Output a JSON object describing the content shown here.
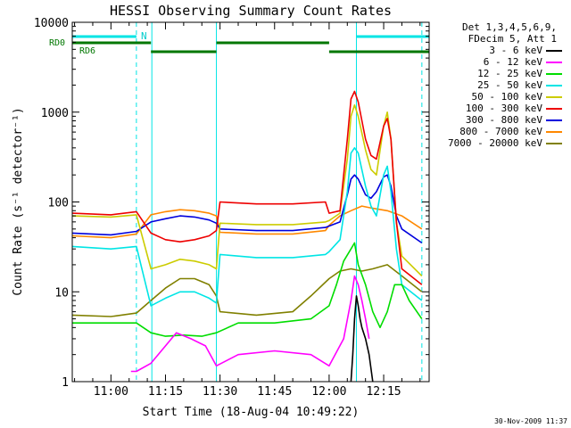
{
  "chart_data": {
    "type": "line",
    "title": "HESSI Observing Summary Count Rates",
    "xlabel": "Start Time (18-Aug-04 10:49:22)",
    "ylabel": "Count Rate (s⁻¹ detector⁻¹)",
    "ylog": true,
    "ylim": [
      1,
      10000
    ],
    "xlim": [
      "10:49:22",
      "12:27:30"
    ],
    "x_tick_labels": [
      "11:00",
      "11:15",
      "11:30",
      "11:45",
      "12:00",
      "12:15"
    ],
    "y_tick_labels": [
      "1",
      "10",
      "100",
      "1000",
      "10000"
    ],
    "legend_header": [
      "Det 1,3,4,5,6,9,",
      "FDecim 5, Att 1"
    ],
    "legend_position": "right",
    "annotations": {
      "n_label": "N",
      "rd0_label": "RD0",
      "rd6_label": "RD6"
    },
    "vertical_lines": {
      "solid": [
        "10:49:22",
        "11:11:15",
        "11:29:00",
        "12:07:30"
      ],
      "dashed": [
        "11:07:00",
        "12:25:30"
      ]
    },
    "night_bars": [
      [
        "10:49:22",
        "11:07:00"
      ],
      [
        "12:07:30",
        "12:27:30"
      ]
    ],
    "rd0_segments": [
      [
        "10:49:22",
        "11:11:00"
      ],
      [
        "11:29:00",
        "12:00:00"
      ]
    ],
    "rd6_segments": [
      [
        "11:11:00",
        "11:29:00"
      ],
      [
        "12:00:00",
        "12:27:30"
      ]
    ],
    "series": [
      {
        "name": "3 - 6 keV",
        "color": "#000000",
        "points": [
          [
            "12:06:00",
            1
          ],
          [
            "12:06:30",
            2
          ],
          [
            "12:07:00",
            5
          ],
          [
            "12:07:30",
            9
          ],
          [
            "12:08:00",
            7
          ],
          [
            "12:08:30",
            5
          ],
          [
            "12:09:00",
            4
          ],
          [
            "12:10:00",
            3
          ],
          [
            "12:11:00",
            2
          ],
          [
            "12:12:00",
            1
          ]
        ]
      },
      {
        "name": "6 - 12 keV",
        "color": "#ff00ff",
        "points": [
          [
            "11:05:30",
            1.3
          ],
          [
            "11:07:00",
            1.3
          ],
          [
            "11:11:00",
            1.6
          ],
          [
            "11:15:00",
            2.5
          ],
          [
            "11:18:00",
            3.5
          ],
          [
            "11:22:00",
            3
          ],
          [
            "11:26:00",
            2.5
          ],
          [
            "11:29:00",
            1.5
          ],
          [
            "11:35:00",
            2
          ],
          [
            "11:45:00",
            2.2
          ],
          [
            "11:55:00",
            2
          ],
          [
            "12:00:00",
            1.5
          ],
          [
            "12:04:00",
            3
          ],
          [
            "12:06:00",
            8
          ],
          [
            "12:07:00",
            15
          ],
          [
            "12:08:00",
            12
          ],
          [
            "12:09:00",
            8
          ],
          [
            "12:10:00",
            5
          ],
          [
            "12:11:00",
            3
          ]
        ]
      },
      {
        "name": "12 - 25 keV",
        "color": "#00dd00",
        "points": [
          [
            "10:49:22",
            4.5
          ],
          [
            "11:00:00",
            4.5
          ],
          [
            "11:07:00",
            4.5
          ],
          [
            "11:11:00",
            3.5
          ],
          [
            "11:15:00",
            3.2
          ],
          [
            "11:20:00",
            3.3
          ],
          [
            "11:25:00",
            3.2
          ],
          [
            "11:29:00",
            3.5
          ],
          [
            "11:35:00",
            4.5
          ],
          [
            "11:45:00",
            4.5
          ],
          [
            "11:55:00",
            5
          ],
          [
            "12:00:00",
            7
          ],
          [
            "12:02:00",
            12
          ],
          [
            "12:04:00",
            22
          ],
          [
            "12:06:00",
            30
          ],
          [
            "12:07:00",
            35
          ],
          [
            "12:08:00",
            20
          ],
          [
            "12:10:00",
            12
          ],
          [
            "12:12:00",
            6
          ],
          [
            "12:14:00",
            4
          ],
          [
            "12:16:00",
            6
          ],
          [
            "12:18:00",
            12
          ],
          [
            "12:20:00",
            12
          ],
          [
            "12:22:00",
            8
          ],
          [
            "12:25:30",
            5
          ]
        ]
      },
      {
        "name": "25 - 50 keV",
        "color": "#00e5e5",
        "points": [
          [
            "10:49:22",
            32
          ],
          [
            "11:00:00",
            30
          ],
          [
            "11:07:00",
            32
          ],
          [
            "11:11:00",
            7
          ],
          [
            "11:15:00",
            8.5
          ],
          [
            "11:19:00",
            10
          ],
          [
            "11:23:00",
            10
          ],
          [
            "11:27:00",
            8.5
          ],
          [
            "11:29:00",
            7.5
          ],
          [
            "11:30:00",
            26
          ],
          [
            "11:40:00",
            24
          ],
          [
            "11:50:00",
            24
          ],
          [
            "11:59:00",
            26
          ],
          [
            "12:00:00",
            28
          ],
          [
            "12:03:00",
            38
          ],
          [
            "12:05:00",
            130
          ],
          [
            "12:06:00",
            350
          ],
          [
            "12:07:00",
            400
          ],
          [
            "12:08:00",
            350
          ],
          [
            "12:10:00",
            150
          ],
          [
            "12:11:30",
            90
          ],
          [
            "12:13:00",
            70
          ],
          [
            "12:15:00",
            200
          ],
          [
            "12:16:00",
            250
          ],
          [
            "12:17:00",
            130
          ],
          [
            "12:18:30",
            30
          ],
          [
            "12:20:00",
            12
          ],
          [
            "12:25:30",
            8
          ]
        ]
      },
      {
        "name": "50 - 100 keV",
        "color": "#cccc00",
        "points": [
          [
            "10:49:22",
            70
          ],
          [
            "11:00:00",
            68
          ],
          [
            "11:07:00",
            72
          ],
          [
            "11:11:00",
            18
          ],
          [
            "11:15:00",
            20
          ],
          [
            "11:19:00",
            23
          ],
          [
            "11:23:00",
            22
          ],
          [
            "11:27:00",
            20
          ],
          [
            "11:29:00",
            18
          ],
          [
            "11:30:00",
            58
          ],
          [
            "11:40:00",
            56
          ],
          [
            "11:50:00",
            56
          ],
          [
            "11:59:00",
            60
          ],
          [
            "12:00:00",
            62
          ],
          [
            "12:03:00",
            75
          ],
          [
            "12:05:00",
            300
          ],
          [
            "12:06:00",
            900
          ],
          [
            "12:07:00",
            1200
          ],
          [
            "12:08:00",
            900
          ],
          [
            "12:10:00",
            380
          ],
          [
            "12:11:30",
            230
          ],
          [
            "12:13:00",
            200
          ],
          [
            "12:15:00",
            700
          ],
          [
            "12:16:00",
            1000
          ],
          [
            "12:17:00",
            500
          ],
          [
            "12:18:30",
            60
          ],
          [
            "12:20:00",
            25
          ],
          [
            "12:25:30",
            15
          ]
        ]
      },
      {
        "name": "100 - 300 keV",
        "color": "#ee0000",
        "points": [
          [
            "10:49:22",
            75
          ],
          [
            "11:00:00",
            72
          ],
          [
            "11:07:00",
            78
          ],
          [
            "11:11:00",
            45
          ],
          [
            "11:15:00",
            38
          ],
          [
            "11:19:00",
            36
          ],
          [
            "11:23:00",
            38
          ],
          [
            "11:27:00",
            42
          ],
          [
            "11:29:00",
            48
          ],
          [
            "11:30:00",
            100
          ],
          [
            "11:40:00",
            95
          ],
          [
            "11:50:00",
            95
          ],
          [
            "11:59:00",
            100
          ],
          [
            "12:00:00",
            75
          ],
          [
            "12:03:00",
            80
          ],
          [
            "12:05:00",
            500
          ],
          [
            "12:06:00",
            1400
          ],
          [
            "12:07:00",
            1700
          ],
          [
            "12:08:00",
            1300
          ],
          [
            "12:10:00",
            500
          ],
          [
            "12:11:30",
            330
          ],
          [
            "12:13:00",
            300
          ],
          [
            "12:15:00",
            700
          ],
          [
            "12:16:00",
            850
          ],
          [
            "12:17:00",
            500
          ],
          [
            "12:18:30",
            60
          ],
          [
            "12:20:00",
            18
          ],
          [
            "12:25:30",
            12
          ]
        ]
      },
      {
        "name": "300 - 800 keV",
        "color": "#0000dd",
        "points": [
          [
            "10:49:22",
            45
          ],
          [
            "11:00:00",
            43
          ],
          [
            "11:07:00",
            47
          ],
          [
            "11:11:00",
            60
          ],
          [
            "11:15:00",
            65
          ],
          [
            "11:19:00",
            70
          ],
          [
            "11:23:00",
            68
          ],
          [
            "11:27:00",
            63
          ],
          [
            "11:29:00",
            58
          ],
          [
            "11:30:00",
            50
          ],
          [
            "11:40:00",
            48
          ],
          [
            "11:50:00",
            48
          ],
          [
            "11:59:00",
            52
          ],
          [
            "12:00:00",
            54
          ],
          [
            "12:03:00",
            60
          ],
          [
            "12:05:00",
            120
          ],
          [
            "12:06:00",
            180
          ],
          [
            "12:07:00",
            200
          ],
          [
            "12:08:00",
            180
          ],
          [
            "12:10:00",
            120
          ],
          [
            "12:11:30",
            110
          ],
          [
            "12:13:00",
            130
          ],
          [
            "12:15:00",
            190
          ],
          [
            "12:16:00",
            200
          ],
          [
            "12:17:00",
            150
          ],
          [
            "12:18:30",
            70
          ],
          [
            "12:20:00",
            50
          ],
          [
            "12:25:30",
            35
          ]
        ]
      },
      {
        "name": "800 - 7000 keV",
        "color": "#ff8800",
        "points": [
          [
            "10:49:22",
            42
          ],
          [
            "11:00:00",
            40
          ],
          [
            "11:07:00",
            44
          ],
          [
            "11:11:00",
            72
          ],
          [
            "11:15:00",
            78
          ],
          [
            "11:19:00",
            82
          ],
          [
            "11:23:00",
            80
          ],
          [
            "11:27:00",
            75
          ],
          [
            "11:29:00",
            70
          ],
          [
            "11:30:00",
            46
          ],
          [
            "11:40:00",
            44
          ],
          [
            "11:50:00",
            44
          ],
          [
            "11:59:00",
            48
          ],
          [
            "12:00:00",
            55
          ],
          [
            "12:03:00",
            70
          ],
          [
            "12:06:00",
            80
          ],
          [
            "12:09:00",
            90
          ],
          [
            "12:12:00",
            85
          ],
          [
            "12:16:00",
            80
          ],
          [
            "12:20:00",
            70
          ],
          [
            "12:25:30",
            50
          ]
        ]
      },
      {
        "name": "7000 - 20000 keV",
        "color": "#808000",
        "points": [
          [
            "10:49:22",
            5.5
          ],
          [
            "11:00:00",
            5.3
          ],
          [
            "11:07:00",
            5.8
          ],
          [
            "11:11:00",
            8
          ],
          [
            "11:15:00",
            11
          ],
          [
            "11:19:00",
            14
          ],
          [
            "11:23:00",
            14
          ],
          [
            "11:27:00",
            12
          ],
          [
            "11:29:00",
            9
          ],
          [
            "11:30:00",
            6
          ],
          [
            "11:40:00",
            5.5
          ],
          [
            "11:50:00",
            6
          ],
          [
            "11:55:00",
            9
          ],
          [
            "12:00:00",
            14
          ],
          [
            "12:03:00",
            17
          ],
          [
            "12:06:00",
            18
          ],
          [
            "12:09:00",
            17
          ],
          [
            "12:12:00",
            18
          ],
          [
            "12:16:00",
            20
          ],
          [
            "12:20:00",
            15
          ],
          [
            "12:25:30",
            10
          ]
        ]
      }
    ]
  },
  "footer": {
    "timestamp": "30-Nov-2009 11:37"
  }
}
